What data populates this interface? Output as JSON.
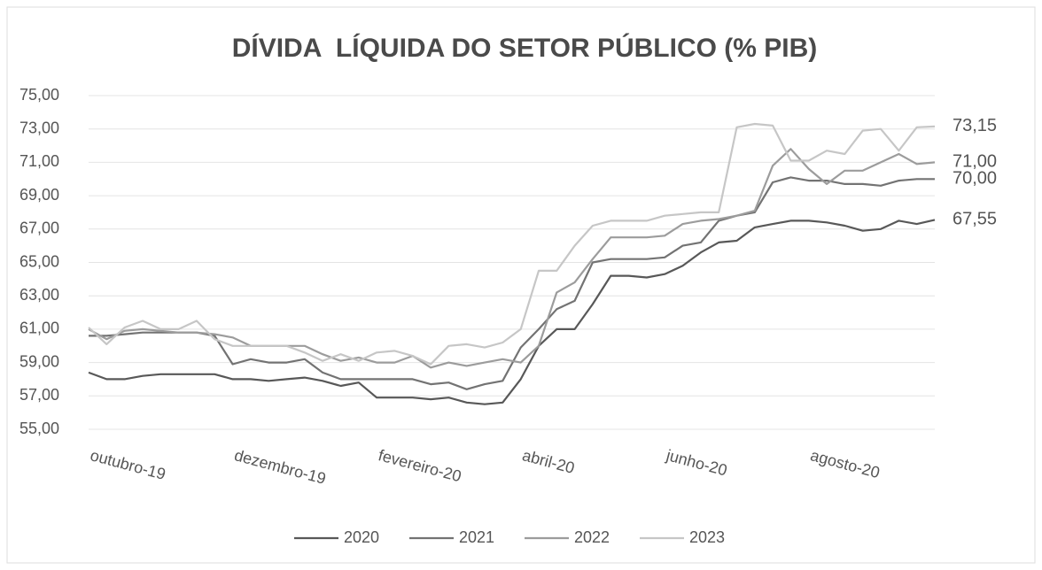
{
  "chart_data": {
    "type": "line",
    "title": "DÍVIDA  LÍQUIDA DO SETOR PÚBLICO (% PIB)",
    "categories": [
      "outubro-19",
      null,
      null,
      null,
      null,
      null,
      null,
      null,
      "dezembro-19",
      null,
      null,
      null,
      null,
      null,
      null,
      null,
      "fevereiro-20",
      null,
      null,
      null,
      null,
      null,
      null,
      null,
      "abril-20",
      null,
      null,
      null,
      null,
      null,
      null,
      null,
      "junho-20",
      null,
      null,
      null,
      null,
      null,
      null,
      null,
      "agosto-20",
      null,
      null,
      null,
      null,
      null,
      null,
      null
    ],
    "ylim": [
      55,
      75
    ],
    "yticks": [
      {
        "value": 55,
        "label": "55,00"
      },
      {
        "value": 57,
        "label": "57,00"
      },
      {
        "value": 59,
        "label": "59,00"
      },
      {
        "value": 61,
        "label": "61,00"
      },
      {
        "value": 63,
        "label": "63,00"
      },
      {
        "value": 65,
        "label": "65,00"
      },
      {
        "value": 67,
        "label": "67,00"
      },
      {
        "value": 69,
        "label": "69,00"
      },
      {
        "value": 71,
        "label": "71,00"
      },
      {
        "value": 73,
        "label": "73,00"
      },
      {
        "value": 75,
        "label": "75,00"
      }
    ],
    "grid": true,
    "legend": "bottom",
    "series": [
      {
        "name": "2020",
        "color": "#585858",
        "values": [
          58.4,
          58.0,
          58.0,
          58.2,
          58.3,
          58.3,
          58.3,
          58.3,
          58.0,
          58.0,
          57.9,
          58.0,
          58.1,
          57.9,
          57.6,
          57.8,
          56.9,
          56.9,
          56.9,
          56.8,
          56.9,
          56.6,
          56.5,
          56.6,
          58.0,
          60.0,
          61.0,
          61.0,
          62.5,
          64.2,
          64.2,
          64.1,
          64.3,
          64.8,
          65.6,
          66.2,
          66.3,
          67.1,
          67.3,
          67.5,
          67.5,
          67.4,
          67.2,
          66.9,
          67.0,
          67.5,
          67.3,
          67.55
        ],
        "value_labels": [
          null,
          null,
          null,
          null,
          null,
          null,
          null,
          null,
          null,
          null,
          null,
          null,
          null,
          null,
          null,
          null,
          null,
          null,
          null,
          null,
          null,
          null,
          null,
          null,
          null,
          null,
          null,
          null,
          null,
          null,
          null,
          null,
          null,
          null,
          null,
          null,
          null,
          null,
          null,
          null,
          null,
          null,
          null,
          null,
          null,
          null,
          null,
          "67,55"
        ]
      },
      {
        "name": "2021",
        "color": "#737373",
        "values": [
          60.6,
          60.6,
          60.7,
          60.8,
          60.8,
          60.8,
          60.8,
          60.6,
          58.9,
          59.2,
          59.0,
          59.0,
          59.2,
          58.4,
          58.0,
          58.0,
          58.0,
          58.0,
          58.0,
          57.7,
          57.8,
          57.4,
          57.7,
          57.9,
          59.9,
          61.0,
          62.2,
          62.7,
          65.0,
          65.2,
          65.2,
          65.2,
          65.3,
          66.0,
          66.2,
          67.5,
          67.8,
          68.0,
          69.8,
          70.1,
          69.9,
          69.9,
          69.7,
          69.7,
          69.6,
          69.9,
          70.0,
          70.0
        ],
        "value_labels": [
          null,
          null,
          null,
          null,
          null,
          null,
          null,
          null,
          null,
          null,
          null,
          null,
          null,
          null,
          null,
          null,
          null,
          null,
          null,
          null,
          null,
          null,
          null,
          null,
          null,
          null,
          null,
          null,
          null,
          null,
          null,
          null,
          null,
          null,
          null,
          null,
          null,
          null,
          null,
          null,
          null,
          null,
          null,
          null,
          null,
          null,
          null,
          "70,00"
        ]
      },
      {
        "name": "2022",
        "color": "#9c9c9c",
        "values": [
          61.0,
          60.4,
          60.9,
          61.0,
          60.9,
          60.8,
          60.8,
          60.7,
          60.5,
          60.0,
          60.0,
          60.0,
          60.0,
          59.5,
          59.1,
          59.3,
          59.0,
          59.0,
          59.4,
          58.7,
          59.0,
          58.8,
          59.0,
          59.2,
          59.0,
          60.0,
          63.2,
          63.8,
          65.2,
          66.5,
          66.5,
          66.5,
          66.6,
          67.3,
          67.5,
          67.6,
          67.8,
          68.1,
          70.8,
          71.8,
          70.6,
          69.7,
          70.5,
          70.5,
          71.0,
          71.5,
          70.9,
          71.0
        ],
        "value_labels": [
          null,
          null,
          null,
          null,
          null,
          null,
          null,
          null,
          null,
          null,
          null,
          null,
          null,
          null,
          null,
          null,
          null,
          null,
          null,
          null,
          null,
          null,
          null,
          null,
          null,
          null,
          null,
          null,
          null,
          null,
          null,
          null,
          null,
          null,
          null,
          null,
          null,
          null,
          null,
          null,
          null,
          null,
          null,
          null,
          null,
          null,
          null,
          "71,00"
        ]
      },
      {
        "name": "2023",
        "color": "#c6c6c6",
        "values": [
          61.1,
          60.1,
          61.1,
          61.5,
          61.0,
          61.0,
          61.5,
          60.4,
          60.0,
          60.0,
          60.0,
          60.0,
          59.6,
          59.1,
          59.5,
          59.1,
          59.6,
          59.7,
          59.4,
          58.9,
          60.0,
          60.1,
          59.9,
          60.2,
          61.0,
          64.5,
          64.5,
          66.0,
          67.2,
          67.5,
          67.5,
          67.5,
          67.8,
          67.9,
          68.0,
          68.0,
          73.1,
          73.3,
          73.2,
          71.1,
          71.1,
          71.7,
          71.5,
          72.9,
          73.0,
          71.7,
          73.1,
          73.15
        ],
        "value_labels": [
          null,
          null,
          null,
          null,
          null,
          null,
          null,
          null,
          null,
          null,
          null,
          null,
          null,
          null,
          null,
          null,
          null,
          null,
          null,
          null,
          null,
          null,
          null,
          null,
          null,
          null,
          null,
          null,
          null,
          null,
          null,
          null,
          null,
          null,
          null,
          null,
          null,
          null,
          null,
          null,
          null,
          null,
          null,
          null,
          null,
          null,
          null,
          "73,15"
        ]
      }
    ]
  }
}
